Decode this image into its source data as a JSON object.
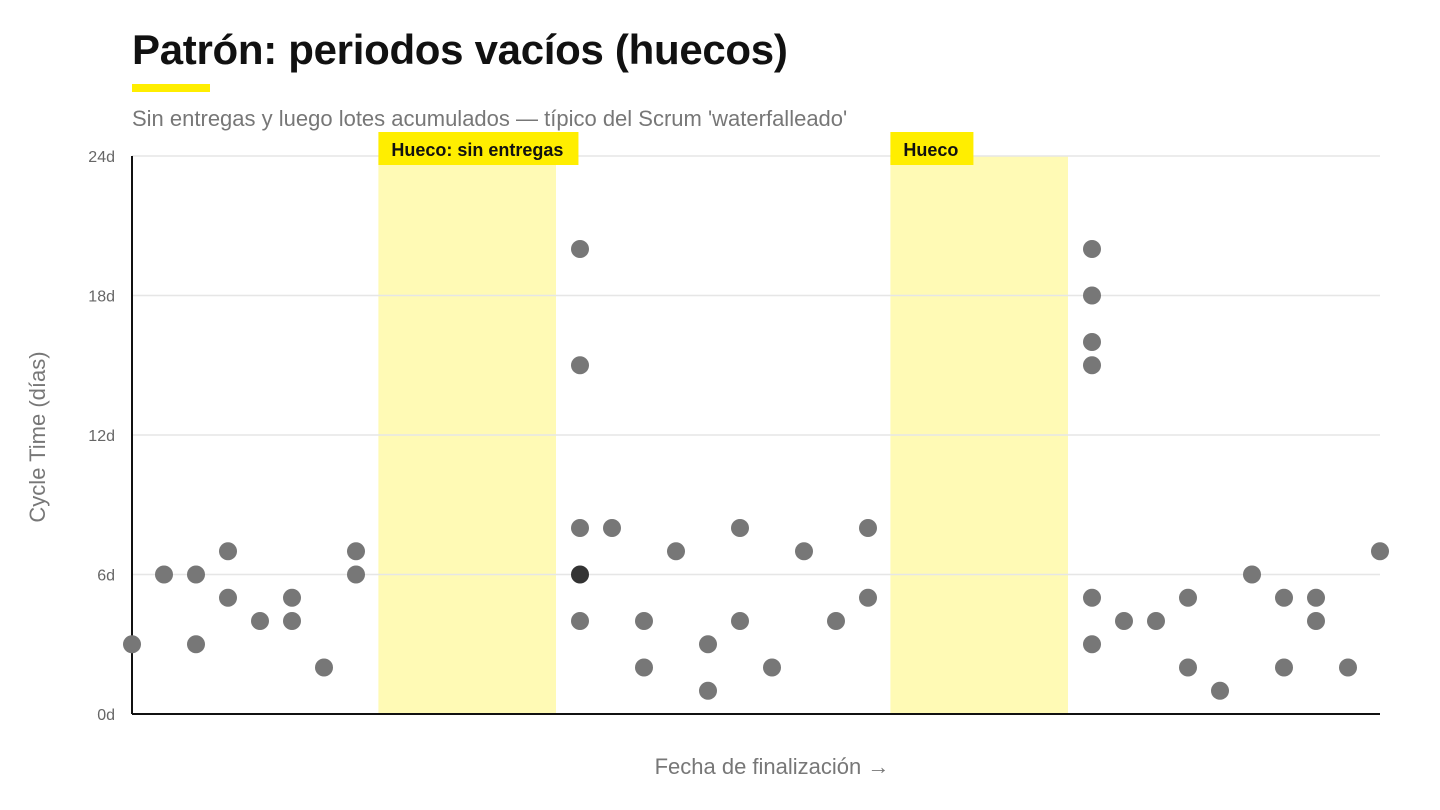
{
  "colors": {
    "accent": "#ffee00",
    "band_fill": "#fffab5",
    "point": "#777777",
    "point_highlight": "#333333",
    "grid": "#e6e6e6",
    "axis": "#111111"
  },
  "chart_data": {
    "type": "scatter",
    "title": "Patrón: periodos vacíos (huecos)",
    "subtitle": "Sin entregas y luego lotes acumulados — típico del Scrum 'waterfalleado'",
    "xlabel": "Fecha de finalización →",
    "ylabel": "Cycle Time (días)",
    "ylim": [
      0,
      24
    ],
    "xlim": [
      0,
      39
    ],
    "yticks": [
      {
        "value": 0,
        "label": "0d"
      },
      {
        "value": 6,
        "label": "6d"
      },
      {
        "value": 12,
        "label": "12d"
      },
      {
        "value": 18,
        "label": "18d"
      },
      {
        "value": 24,
        "label": "24d"
      }
    ],
    "grid": true,
    "gaps": [
      {
        "label": "Hueco: sin entregas",
        "x_start": 7.7,
        "x_end": 13.25
      },
      {
        "label": "Hueco",
        "x_start": 23.7,
        "x_end": 29.25
      }
    ],
    "points": [
      {
        "x": 0,
        "y": 3
      },
      {
        "x": 1,
        "y": 6
      },
      {
        "x": 2,
        "y": 6
      },
      {
        "x": 2,
        "y": 3
      },
      {
        "x": 3,
        "y": 7
      },
      {
        "x": 3,
        "y": 5
      },
      {
        "x": 4,
        "y": 4
      },
      {
        "x": 5,
        "y": 5
      },
      {
        "x": 5,
        "y": 4
      },
      {
        "x": 6,
        "y": 2
      },
      {
        "x": 7,
        "y": 7
      },
      {
        "x": 7,
        "y": 6
      },
      {
        "x": 14,
        "y": 20
      },
      {
        "x": 14,
        "y": 15
      },
      {
        "x": 14,
        "y": 8
      },
      {
        "x": 14,
        "y": 6,
        "highlight": true
      },
      {
        "x": 14,
        "y": 4
      },
      {
        "x": 15,
        "y": 8
      },
      {
        "x": 16,
        "y": 4
      },
      {
        "x": 16,
        "y": 2
      },
      {
        "x": 17,
        "y": 7
      },
      {
        "x": 18,
        "y": 3
      },
      {
        "x": 18,
        "y": 1
      },
      {
        "x": 19,
        "y": 8
      },
      {
        "x": 19,
        "y": 4
      },
      {
        "x": 20,
        "y": 2
      },
      {
        "x": 21,
        "y": 7
      },
      {
        "x": 22,
        "y": 4
      },
      {
        "x": 23,
        "y": 8
      },
      {
        "x": 23,
        "y": 5
      },
      {
        "x": 30,
        "y": 20
      },
      {
        "x": 30,
        "y": 18
      },
      {
        "x": 30,
        "y": 16
      },
      {
        "x": 30,
        "y": 15
      },
      {
        "x": 30,
        "y": 5
      },
      {
        "x": 30,
        "y": 3
      },
      {
        "x": 31,
        "y": 4
      },
      {
        "x": 32,
        "y": 4
      },
      {
        "x": 33,
        "y": 5
      },
      {
        "x": 33,
        "y": 2
      },
      {
        "x": 34,
        "y": 1
      },
      {
        "x": 35,
        "y": 6
      },
      {
        "x": 36,
        "y": 5
      },
      {
        "x": 36,
        "y": 2
      },
      {
        "x": 37,
        "y": 5
      },
      {
        "x": 37,
        "y": 4
      },
      {
        "x": 38,
        "y": 2
      },
      {
        "x": 39,
        "y": 7
      }
    ]
  }
}
